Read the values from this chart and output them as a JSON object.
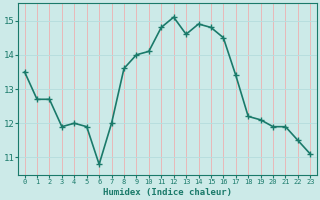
{
  "x": [
    0,
    1,
    2,
    3,
    4,
    5,
    6,
    7,
    8,
    9,
    10,
    11,
    12,
    13,
    14,
    15,
    16,
    17,
    18,
    19,
    20,
    21,
    22,
    23
  ],
  "y": [
    13.5,
    12.7,
    12.7,
    11.9,
    12.0,
    11.9,
    10.8,
    12.0,
    13.6,
    14.0,
    14.1,
    14.8,
    15.1,
    14.6,
    14.9,
    14.8,
    14.5,
    13.4,
    12.2,
    12.1,
    11.9,
    11.9,
    11.5,
    11.1
  ],
  "line_color": "#1a7a6a",
  "marker": "+",
  "marker_size": 4,
  "bg_color": "#cceae8",
  "grid_color_major": "#e8b8b8",
  "grid_color_minor": "#b8dede",
  "xlabel": "Humidex (Indice chaleur)",
  "ylim": [
    10.5,
    15.5
  ],
  "xlim": [
    -0.5,
    23.5
  ],
  "yticks": [
    11,
    12,
    13,
    14,
    15
  ],
  "xticks": [
    0,
    1,
    2,
    3,
    4,
    5,
    6,
    7,
    8,
    9,
    10,
    11,
    12,
    13,
    14,
    15,
    16,
    17,
    18,
    19,
    20,
    21,
    22,
    23
  ],
  "tick_color": "#1a7a6a",
  "label_color": "#1a7a6a",
  "line_width": 1.2
}
